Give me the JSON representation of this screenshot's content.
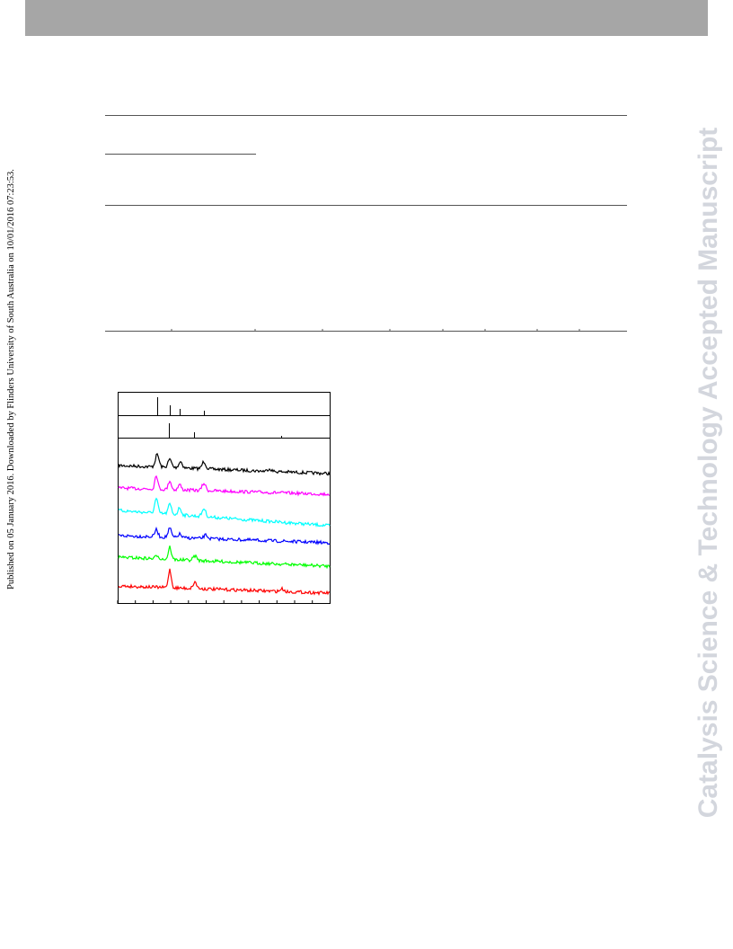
{
  "publication_note": "Published on 05 January 2016. Downloaded by Flinders University of South Australia on 10/01/2016 07:23:53.",
  "watermark": "Catalysis Science & Technology Accepted Manuscript"
}
